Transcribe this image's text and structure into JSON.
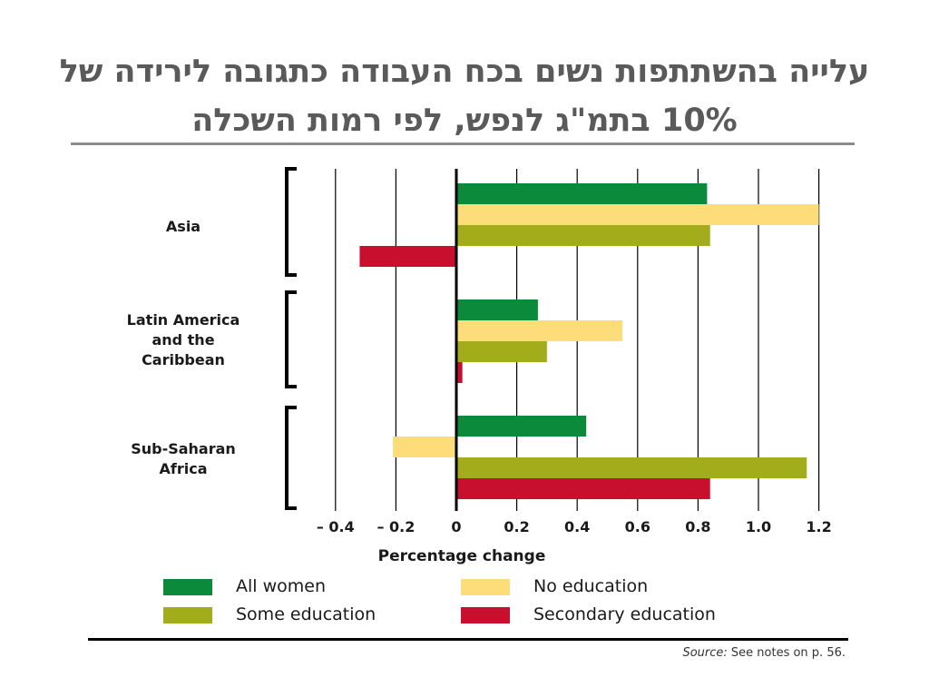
{
  "slide": {
    "title": "עלייה בהשתתפות נשים בכח העבודה כתגובה לירידה של 10% בתמ\"ג לנפש, לפי רמות השכלה",
    "source_label": "Source:",
    "source_text": "See notes on p. 56."
  },
  "chart_data": {
    "type": "bar",
    "orientation": "horizontal",
    "title": "עלייה בהשתתפות נשים בכח העבודה כתגובה לירידה של 10% בתמ\"ג לנפש, לפי רמות השכלה",
    "xlabel": "Percentage change",
    "ylabel": "",
    "xlim": [
      -0.4,
      1.2
    ],
    "xticks": [
      -0.4,
      -0.2,
      0,
      0.2,
      0.4,
      0.6,
      0.8,
      1.0,
      1.2
    ],
    "xtick_labels": [
      "– 0.4",
      "– 0.2",
      "0",
      "0.2",
      "0.4",
      "0.6",
      "0.8",
      "1.0",
      "1.2"
    ],
    "grid": "vertical",
    "legend_placement": "bottom",
    "categories": [
      "Asia",
      "Latin America and the Caribbean",
      "Sub-Saharan Africa"
    ],
    "category_lines": [
      [
        "Asia"
      ],
      [
        "Latin America",
        "and the",
        "Caribbean"
      ],
      [
        "Sub-Saharan",
        "Africa"
      ]
    ],
    "series": [
      {
        "name": "All women",
        "color": "#0a8a3a",
        "values": [
          0.83,
          0.27,
          0.43
        ]
      },
      {
        "name": "No education",
        "color": "#fddc7a",
        "values": [
          1.2,
          0.55,
          -0.21
        ]
      },
      {
        "name": "Some education",
        "color": "#a3ad1c",
        "values": [
          0.84,
          0.3,
          1.16
        ]
      },
      {
        "name": "Secondary education",
        "color": "#c8102e",
        "values": [
          -0.32,
          0.02,
          0.84
        ]
      }
    ]
  }
}
